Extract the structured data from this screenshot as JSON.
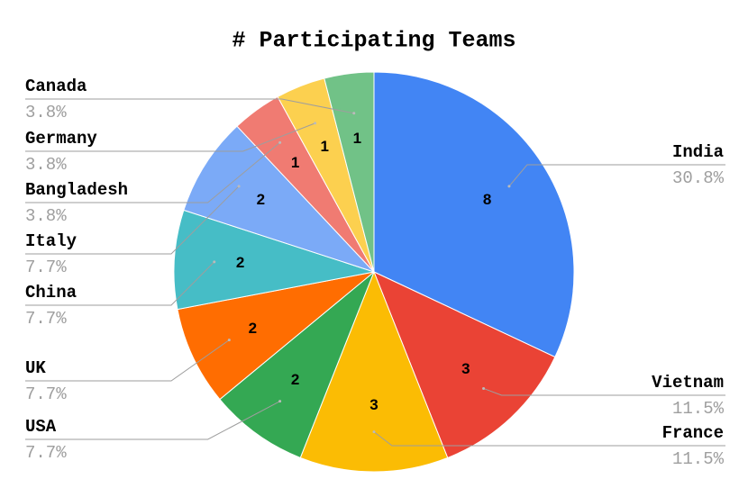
{
  "chart_data": {
    "type": "pie",
    "title": "# Participating Teams",
    "categories": [
      "India",
      "Vietnam",
      "France",
      "USA",
      "UK",
      "China",
      "Italy",
      "Bangladesh",
      "Germany",
      "Canada"
    ],
    "values": [
      8,
      3,
      3,
      2,
      2,
      2,
      2,
      1,
      1,
      1
    ],
    "percent_labels": [
      "30.8%",
      "11.5%",
      "11.5%",
      "7.7%",
      "7.7%",
      "7.7%",
      "7.7%",
      "3.8%",
      "3.8%",
      "3.8%"
    ],
    "colors": [
      "#4285f4",
      "#ea4335",
      "#fbbc04",
      "#34a853",
      "#ff6d01",
      "#46bdc6",
      "#7baaf7",
      "#f07b72",
      "#fcd04f",
      "#71c287"
    ]
  }
}
